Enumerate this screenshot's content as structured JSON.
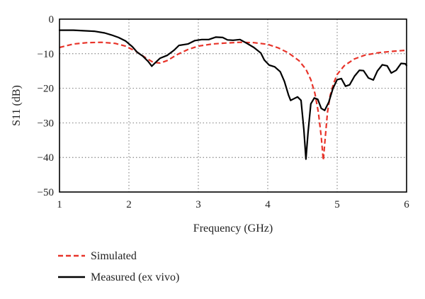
{
  "chart_data": {
    "type": "line",
    "xlabel": "Frequency (GHz)",
    "ylabel": "S11 (dB)",
    "xlim": [
      1,
      6
    ],
    "ylim": [
      -50,
      0
    ],
    "xticks": [
      "1",
      "2",
      "3",
      "4",
      "5",
      "6"
    ],
    "yticks": [
      "0",
      "−10",
      "−20",
      "−30",
      "−40",
      "−50"
    ],
    "grid": true,
    "legend_position": "bottom-left",
    "series": [
      {
        "name": "Simulated",
        "color": "#e8342a",
        "style": "dashed",
        "points": [
          [
            1.0,
            -8.2
          ],
          [
            1.2,
            -7.2
          ],
          [
            1.4,
            -6.8
          ],
          [
            1.6,
            -6.7
          ],
          [
            1.8,
            -7.0
          ],
          [
            1.95,
            -7.8
          ],
          [
            2.1,
            -9.3
          ],
          [
            2.25,
            -11.3
          ],
          [
            2.35,
            -12.5
          ],
          [
            2.45,
            -12.7
          ],
          [
            2.55,
            -12.0
          ],
          [
            2.7,
            -10.2
          ],
          [
            2.85,
            -8.8
          ],
          [
            3.0,
            -7.8
          ],
          [
            3.2,
            -7.2
          ],
          [
            3.4,
            -6.9
          ],
          [
            3.6,
            -6.7
          ],
          [
            3.8,
            -6.8
          ],
          [
            4.0,
            -7.3
          ],
          [
            4.15,
            -8.3
          ],
          [
            4.3,
            -9.8
          ],
          [
            4.45,
            -12.0
          ],
          [
            4.55,
            -14.5
          ],
          [
            4.62,
            -17.5
          ],
          [
            4.68,
            -21.5
          ],
          [
            4.73,
            -27.0
          ],
          [
            4.77,
            -34.0
          ],
          [
            4.8,
            -40.8
          ],
          [
            4.83,
            -34.0
          ],
          [
            4.86,
            -27.0
          ],
          [
            4.9,
            -22.0
          ],
          [
            4.95,
            -18.5
          ],
          [
            5.0,
            -16.0
          ],
          [
            5.1,
            -13.5
          ],
          [
            5.25,
            -11.5
          ],
          [
            5.4,
            -10.4
          ],
          [
            5.6,
            -9.7
          ],
          [
            5.8,
            -9.3
          ],
          [
            6.0,
            -9.0
          ]
        ]
      },
      {
        "name": "Measured (ex vivo)",
        "color": "#000000",
        "style": "solid",
        "points": [
          [
            1.0,
            -3.2
          ],
          [
            1.2,
            -3.2
          ],
          [
            1.3,
            -3.3
          ],
          [
            1.5,
            -3.5
          ],
          [
            1.65,
            -4.0
          ],
          [
            1.75,
            -4.6
          ],
          [
            1.85,
            -5.3
          ],
          [
            1.95,
            -6.3
          ],
          [
            2.05,
            -8.0
          ],
          [
            2.12,
            -9.6
          ],
          [
            2.2,
            -10.7
          ],
          [
            2.28,
            -12.3
          ],
          [
            2.33,
            -13.6
          ],
          [
            2.38,
            -12.6
          ],
          [
            2.45,
            -11.3
          ],
          [
            2.55,
            -10.5
          ],
          [
            2.65,
            -9.0
          ],
          [
            2.72,
            -7.6
          ],
          [
            2.85,
            -7.2
          ],
          [
            2.95,
            -6.2
          ],
          [
            3.05,
            -5.9
          ],
          [
            3.15,
            -5.9
          ],
          [
            3.25,
            -5.2
          ],
          [
            3.35,
            -5.3
          ],
          [
            3.42,
            -6.0
          ],
          [
            3.5,
            -6.1
          ],
          [
            3.6,
            -5.9
          ],
          [
            3.7,
            -7.0
          ],
          [
            3.8,
            -8.2
          ],
          [
            3.9,
            -9.8
          ],
          [
            3.95,
            -11.8
          ],
          [
            4.02,
            -13.3
          ],
          [
            4.1,
            -13.8
          ],
          [
            4.18,
            -15.2
          ],
          [
            4.24,
            -18.0
          ],
          [
            4.3,
            -22.0
          ],
          [
            4.33,
            -23.5
          ],
          [
            4.38,
            -23.0
          ],
          [
            4.43,
            -22.5
          ],
          [
            4.48,
            -23.5
          ],
          [
            4.52,
            -32.0
          ],
          [
            4.55,
            -40.5
          ],
          [
            4.58,
            -33.0
          ],
          [
            4.62,
            -24.5
          ],
          [
            4.67,
            -22.8
          ],
          [
            4.72,
            -23.2
          ],
          [
            4.77,
            -25.8
          ],
          [
            4.82,
            -26.4
          ],
          [
            4.88,
            -24.0
          ],
          [
            4.94,
            -20.0
          ],
          [
            5.0,
            -17.5
          ],
          [
            5.06,
            -17.2
          ],
          [
            5.12,
            -19.4
          ],
          [
            5.18,
            -19.0
          ],
          [
            5.25,
            -16.5
          ],
          [
            5.32,
            -14.8
          ],
          [
            5.38,
            -14.9
          ],
          [
            5.45,
            -17.0
          ],
          [
            5.52,
            -17.6
          ],
          [
            5.58,
            -15.0
          ],
          [
            5.65,
            -13.2
          ],
          [
            5.72,
            -13.5
          ],
          [
            5.78,
            -15.6
          ],
          [
            5.85,
            -14.8
          ],
          [
            5.92,
            -12.8
          ],
          [
            5.98,
            -12.9
          ],
          [
            6.0,
            -13.4
          ]
        ]
      }
    ]
  }
}
